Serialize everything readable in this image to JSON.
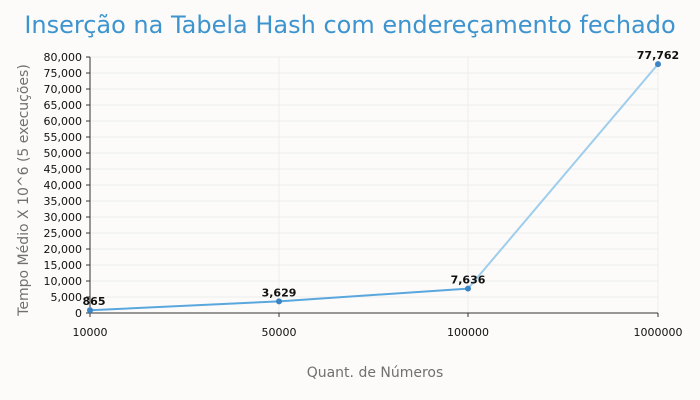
{
  "chart_data": {
    "type": "line",
    "title": "Inserção na Tabela Hash com endereçamento fechado",
    "xlabel": "Quant. de Números",
    "ylabel": "Tempo Médio X 10^6 (5 execuções)",
    "categories": [
      "10000",
      "50000",
      "100000",
      "1000000"
    ],
    "values": [
      865,
      3629,
      7636,
      77762
    ],
    "data_labels": [
      "865",
      "3,629",
      "7,636",
      "77,762"
    ],
    "ylim": [
      0,
      80000
    ],
    "y_ticks": [
      0,
      5000,
      10000,
      15000,
      20000,
      25000,
      30000,
      35000,
      40000,
      45000,
      50000,
      55000,
      60000,
      65000,
      70000,
      75000,
      80000
    ],
    "y_tick_labels": [
      "0",
      "5,000",
      "10,000",
      "15,000",
      "20,000",
      "25,000",
      "30,000",
      "35,000",
      "40,000",
      "45,000",
      "50,000",
      "55,000",
      "60,000",
      "65,000",
      "70,000",
      "75,000",
      "80,000"
    ],
    "grid": true,
    "colors": {
      "title": "#3d94cf",
      "line_main": "#5aa7de",
      "line_last": "#9fcdec",
      "point": "#3b84c6",
      "grid": "#ececec",
      "background": "#fcfbf9"
    }
  }
}
